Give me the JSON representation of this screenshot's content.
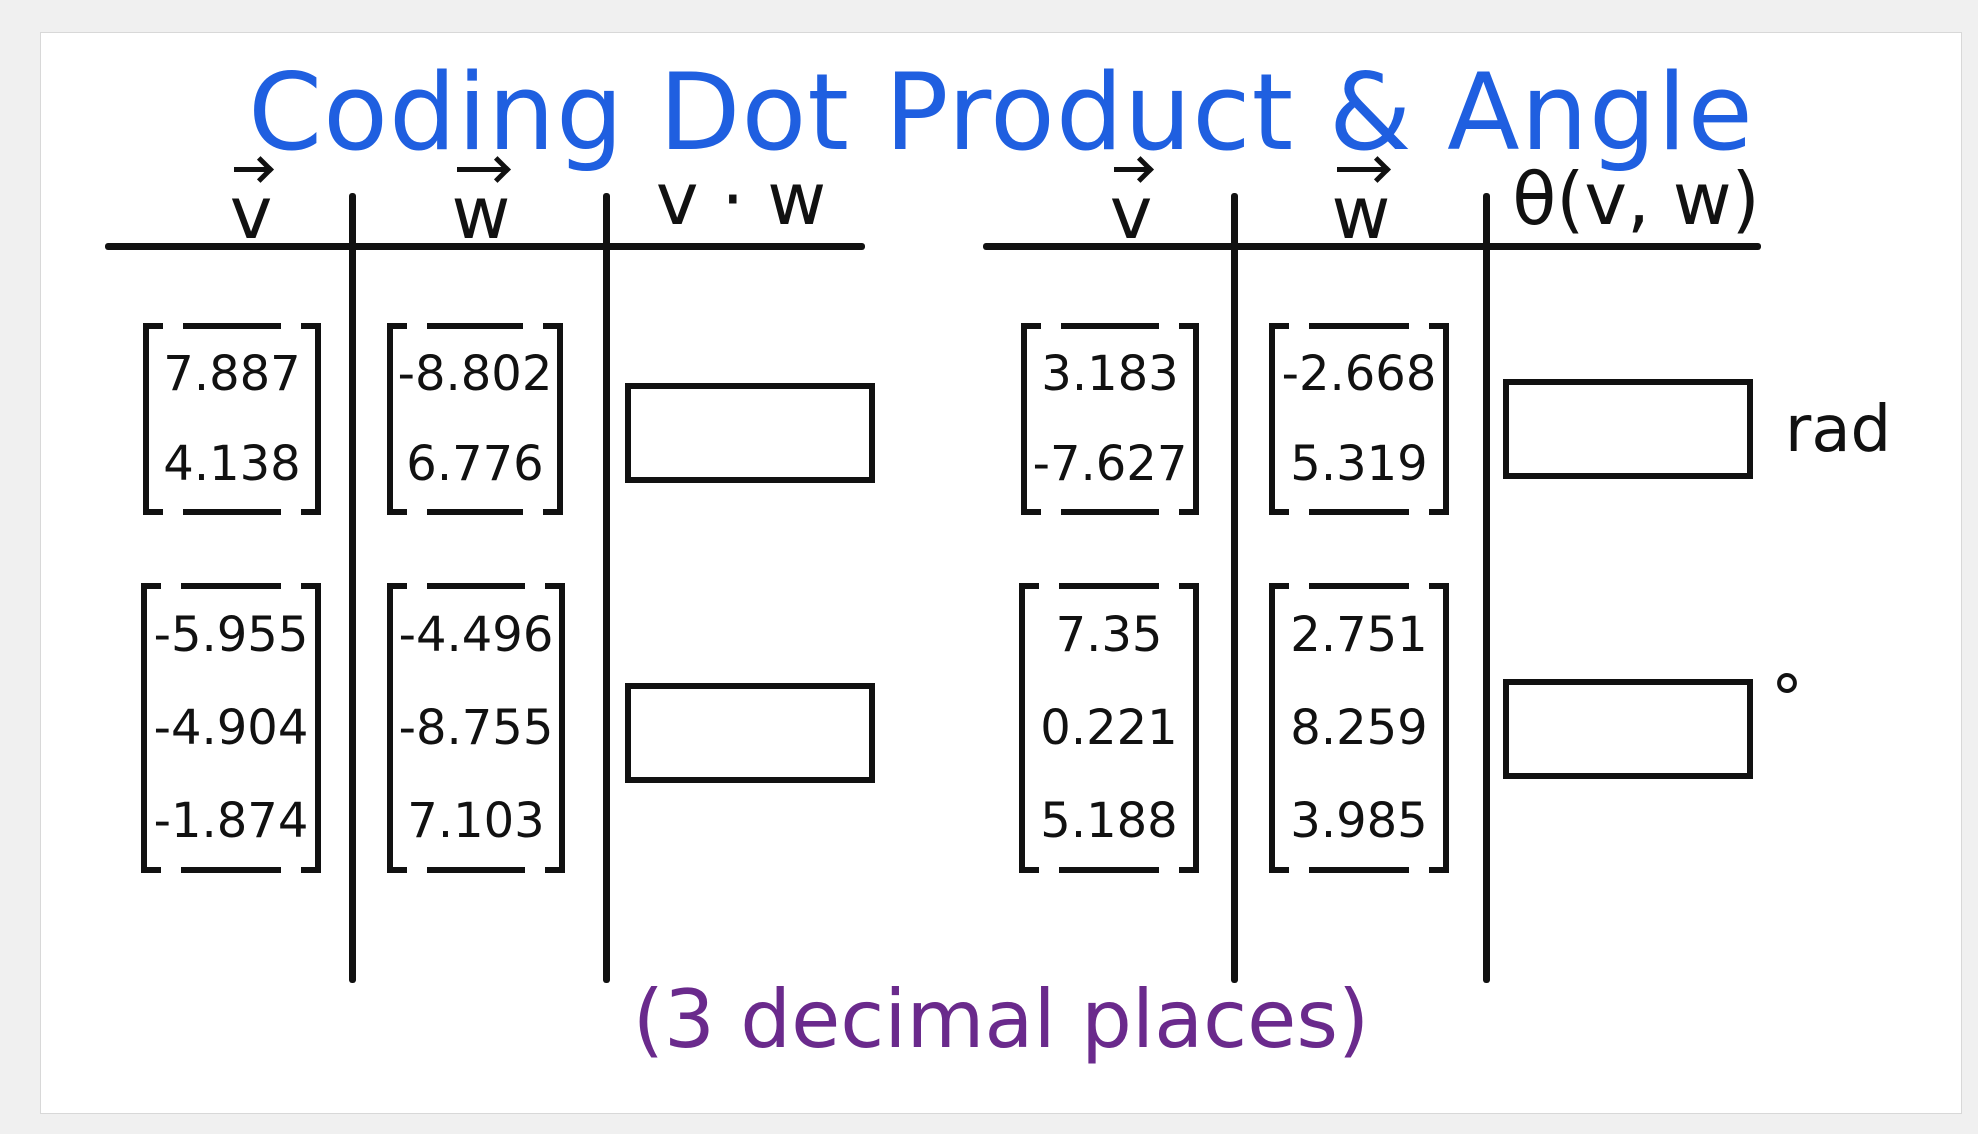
{
  "title": "Coding Dot Product & Angle",
  "left_table": {
    "headers": [
      "v",
      "w",
      "v · w"
    ],
    "rows": [
      {
        "v": [
          "7.887",
          "4.138"
        ],
        "w": [
          "-8.802",
          "6.776"
        ]
      },
      {
        "v": [
          "-5.955",
          "-4.904",
          "-1.874"
        ],
        "w": [
          "-4.496",
          "-8.755",
          "7.103"
        ]
      }
    ]
  },
  "right_table": {
    "headers": [
      "v",
      "w",
      "θ(v, w)"
    ],
    "rows": [
      {
        "v": [
          "3.183",
          "-7.627"
        ],
        "w": [
          "-2.668",
          "5.319"
        ],
        "unit": "rad"
      },
      {
        "v": [
          "7.35",
          "0.221",
          "5.188"
        ],
        "w": [
          "2.751",
          "8.259",
          "3.985"
        ],
        "unit": "°"
      }
    ]
  },
  "footer": "(3 decimal places)"
}
